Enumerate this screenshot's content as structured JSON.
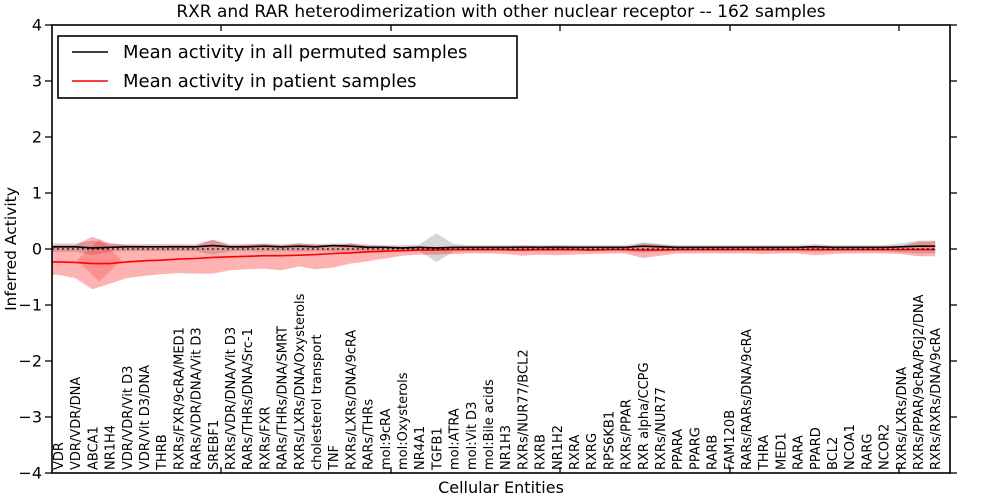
{
  "figure": {
    "title": "RXR and RAR heterodimerization with other nuclear receptor -- 162 samples"
  },
  "chart_data": {
    "type": "line",
    "title": "RXR and RAR heterodimerization with other nuclear receptor -- 162 samples",
    "xlabel": "Cellular Entities",
    "ylabel": "Inferred Activity",
    "ylim": [
      -4,
      4
    ],
    "yticks": [
      -4,
      -3,
      -2,
      -1,
      0,
      1,
      2,
      3,
      4
    ],
    "grid": false,
    "legend_position": "upper left",
    "zero_reference_line": 0,
    "categories": [
      "VDR",
      "VDR/VDR/DNA",
      "ABCA1",
      "NR1H4",
      "VDR/VDR/Vit D3",
      "VDR/Vit D3/DNA",
      "THRB",
      "RXRs/FXR/9cRA/MED1",
      "RARs/VDR/DNA/Vit D3",
      "SREBF1",
      "RXRs/VDR/DNA/Vit D3",
      "RARs/THRs/DNA/Src-1",
      "RXRs/FXR",
      "RARs/THRs/DNA/SMRT",
      "RXRs/LXRs/DNA/Oxysterols",
      "cholesterol transport",
      "TNF",
      "RXRs/LXRs/DNA/9cRA",
      "RARs/THRs",
      "mol:9cRA",
      "mol:Oxysterols",
      "NR4A1",
      "TGFB1",
      "mol:ATRA",
      "mol:Vit D3",
      "mol:Bile acids",
      "NR1H3",
      "RXRs/NUR77/BCL2",
      "RXRB",
      "NR1H2",
      "RXRA",
      "RXRG",
      "RPS6KB1",
      "RXRs/PPAR",
      "RXR alpha/CCPG",
      "RXRs/NUR77",
      "PPARA",
      "PPARG",
      "RARB",
      "FAM120B",
      "RARs/RARs/DNA/9cRA",
      "THRA",
      "MED1",
      "RARA",
      "PPARD",
      "BCL2",
      "NCOA1",
      "RARG",
      "NCOR2",
      "RXRs/LXRs/DNA",
      "RXRs/PPAR/9cRA/PGJ2/DNA",
      "RXRs/RXRs/DNA/9cRA"
    ],
    "series": [
      {
        "name": "Mean activity in all permuted samples",
        "color": "#000000",
        "band_color": "rgba(0,0,0,0.16)",
        "values": [
          0.04,
          0.04,
          0.02,
          0.03,
          0.04,
          0.04,
          0.04,
          0.04,
          0.04,
          0.06,
          0.04,
          0.04,
          0.05,
          0.04,
          0.05,
          0.04,
          0.06,
          0.05,
          0.03,
          0.03,
          0.02,
          0.03,
          0.02,
          0.03,
          0.03,
          0.03,
          0.03,
          0.03,
          0.03,
          0.03,
          0.03,
          0.03,
          0.03,
          0.03,
          0.05,
          0.04,
          0.03,
          0.03,
          0.03,
          0.03,
          0.03,
          0.03,
          0.03,
          0.03,
          0.04,
          0.03,
          0.03,
          0.03,
          0.03,
          0.04,
          0.05,
          0.05
        ],
        "band_upper": [
          0.1,
          0.1,
          0.15,
          0.1,
          0.09,
          0.09,
          0.09,
          0.09,
          0.09,
          0.17,
          0.09,
          0.09,
          0.1,
          0.09,
          0.1,
          0.09,
          0.1,
          0.1,
          0.08,
          0.07,
          0.07,
          0.08,
          0.28,
          0.09,
          0.07,
          0.07,
          0.07,
          0.07,
          0.07,
          0.07,
          0.07,
          0.07,
          0.07,
          0.07,
          0.12,
          0.09,
          0.07,
          0.07,
          0.07,
          0.07,
          0.07,
          0.07,
          0.07,
          0.07,
          0.09,
          0.07,
          0.07,
          0.07,
          0.07,
          0.1,
          0.15,
          0.15
        ],
        "band_lower": [
          -0.05,
          -0.05,
          -0.11,
          -0.05,
          -0.04,
          -0.04,
          -0.04,
          -0.04,
          -0.04,
          -0.1,
          -0.04,
          -0.04,
          -0.05,
          -0.04,
          -0.05,
          -0.04,
          -0.05,
          -0.05,
          -0.04,
          -0.04,
          -0.04,
          -0.04,
          -0.23,
          -0.05,
          -0.04,
          -0.04,
          -0.04,
          -0.04,
          -0.04,
          -0.04,
          -0.04,
          -0.04,
          -0.04,
          -0.04,
          -0.07,
          -0.05,
          -0.04,
          -0.04,
          -0.04,
          -0.04,
          -0.04,
          -0.04,
          -0.04,
          -0.04,
          -0.05,
          -0.04,
          -0.04,
          -0.04,
          -0.04,
          -0.06,
          -0.08,
          -0.08
        ]
      },
      {
        "name": "Mean activity in patient samples",
        "color": "#ff0000",
        "band_color": "rgba(255,0,0,0.30)",
        "values": [
          -0.23,
          -0.24,
          -0.26,
          -0.26,
          -0.23,
          -0.21,
          -0.2,
          -0.18,
          -0.17,
          -0.15,
          -0.14,
          -0.13,
          -0.12,
          -0.12,
          -0.11,
          -0.1,
          -0.08,
          -0.07,
          -0.05,
          -0.04,
          -0.03,
          -0.02,
          -0.02,
          -0.01,
          -0.01,
          -0.01,
          -0.01,
          -0.02,
          -0.01,
          -0.01,
          -0.01,
          -0.02,
          -0.01,
          -0.01,
          -0.02,
          -0.02,
          -0.01,
          -0.01,
          -0.01,
          -0.01,
          -0.01,
          -0.01,
          -0.01,
          -0.01,
          -0.01,
          -0.01,
          -0.01,
          -0.01,
          -0.01,
          -0.01,
          -0.01,
          -0.01
        ],
        "band_upper": [
          0.07,
          0.07,
          0.22,
          0.1,
          0.07,
          0.06,
          0.06,
          0.07,
          0.06,
          0.16,
          0.06,
          0.08,
          0.09,
          0.06,
          0.1,
          0.08,
          0.06,
          0.1,
          0.06,
          0.05,
          0.04,
          0.04,
          0.04,
          0.04,
          0.03,
          0.03,
          0.04,
          0.06,
          0.05,
          0.06,
          0.05,
          0.04,
          0.04,
          0.04,
          0.1,
          0.08,
          0.04,
          0.04,
          0.04,
          0.04,
          0.04,
          0.05,
          0.04,
          0.04,
          0.06,
          0.05,
          0.04,
          0.04,
          0.04,
          0.05,
          0.13,
          0.14
        ],
        "band_lower": [
          -0.46,
          -0.52,
          -0.72,
          -0.62,
          -0.52,
          -0.48,
          -0.45,
          -0.43,
          -0.44,
          -0.44,
          -0.38,
          -0.36,
          -0.35,
          -0.38,
          -0.31,
          -0.36,
          -0.33,
          -0.26,
          -0.22,
          -0.17,
          -0.12,
          -0.1,
          -0.1,
          -0.09,
          -0.08,
          -0.08,
          -0.09,
          -0.12,
          -0.1,
          -0.11,
          -0.1,
          -0.09,
          -0.08,
          -0.08,
          -0.16,
          -0.12,
          -0.08,
          -0.08,
          -0.08,
          -0.08,
          -0.08,
          -0.09,
          -0.08,
          -0.08,
          -0.11,
          -0.09,
          -0.08,
          -0.08,
          -0.08,
          -0.09,
          -0.13,
          -0.13
        ]
      }
    ],
    "inner_band_diamond": {
      "series": "Mean activity in patient samples",
      "center_index": 2.4,
      "half_width_indices": 1.3,
      "top": 0.18,
      "bottom": -0.58,
      "mid": -0.2,
      "color": "rgba(255,0,0,0.20)"
    }
  },
  "legend": {
    "items": [
      {
        "label": "Mean activity in all permuted samples",
        "color": "#000000"
      },
      {
        "label": "Mean activity in patient samples",
        "color": "#ff0000"
      }
    ]
  }
}
